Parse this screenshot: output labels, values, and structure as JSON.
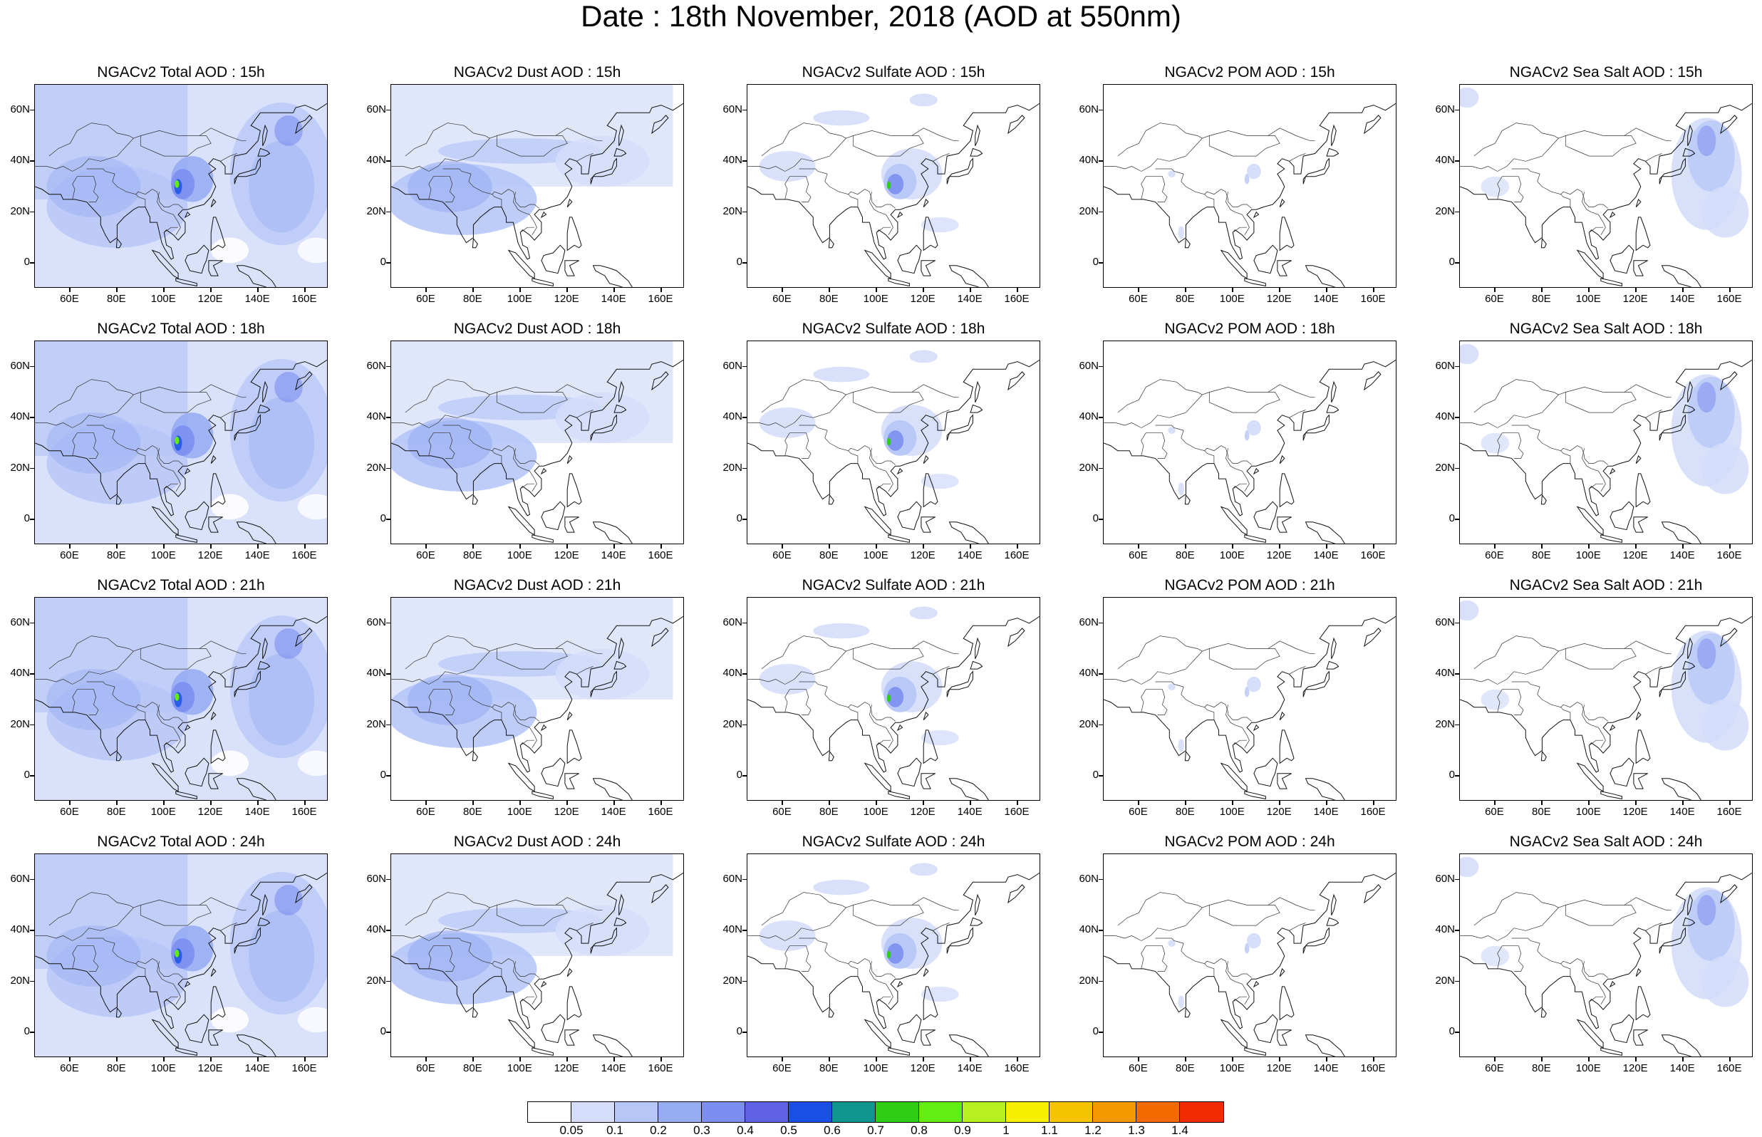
{
  "title": "Date : 18th November, 2018 (AOD at 550nm)",
  "lat_labels": [
    "60N",
    "40N",
    "20N",
    "0"
  ],
  "lon_labels": [
    "60E",
    "80E",
    "100E",
    "120E",
    "140E",
    "160E"
  ],
  "panels": [
    {
      "title": "NGACv2 Total AOD : 15h",
      "species": "total",
      "hour": "15h"
    },
    {
      "title": "NGACv2 Dust AOD : 15h",
      "species": "dust",
      "hour": "15h"
    },
    {
      "title": "NGACv2 Sulfate AOD : 15h",
      "species": "sulfate",
      "hour": "15h"
    },
    {
      "title": "NGACv2 POM AOD : 15h",
      "species": "pom",
      "hour": "15h"
    },
    {
      "title": "NGACv2 Sea Salt AOD : 15h",
      "species": "seasalt",
      "hour": "15h"
    },
    {
      "title": "NGACv2 Total AOD : 18h",
      "species": "total",
      "hour": "18h"
    },
    {
      "title": "NGACv2 Dust AOD : 18h",
      "species": "dust",
      "hour": "18h"
    },
    {
      "title": "NGACv2 Sulfate AOD : 18h",
      "species": "sulfate",
      "hour": "18h"
    },
    {
      "title": "NGACv2 POM AOD : 18h",
      "species": "pom",
      "hour": "18h"
    },
    {
      "title": "NGACv2 Sea Salt AOD : 18h",
      "species": "seasalt",
      "hour": "18h"
    },
    {
      "title": "NGACv2 Total AOD : 21h",
      "species": "total",
      "hour": "21h"
    },
    {
      "title": "NGACv2 Dust AOD : 21h",
      "species": "dust",
      "hour": "21h"
    },
    {
      "title": "NGACv2 Sulfate AOD : 21h",
      "species": "sulfate",
      "hour": "21h"
    },
    {
      "title": "NGACv2 POM AOD : 21h",
      "species": "pom",
      "hour": "21h"
    },
    {
      "title": "NGACv2 Sea Salt AOD : 21h",
      "species": "seasalt",
      "hour": "21h"
    },
    {
      "title": "NGACv2 Total AOD : 24h",
      "species": "total",
      "hour": "24h"
    },
    {
      "title": "NGACv2 Dust AOD : 24h",
      "species": "dust",
      "hour": "24h"
    },
    {
      "title": "NGACv2 Sulfate AOD : 24h",
      "species": "sulfate",
      "hour": "24h"
    },
    {
      "title": "NGACv2 POM AOD : 24h",
      "species": "pom",
      "hour": "24h"
    },
    {
      "title": "NGACv2 Sea Salt  AOD : 24h",
      "species": "seasalt",
      "hour": "24h"
    }
  ],
  "colorbar": {
    "labels": [
      "0.05",
      "0.1",
      "0.2",
      "0.3",
      "0.4",
      "0.5",
      "0.6",
      "0.7",
      "0.8",
      "0.9",
      "1",
      "1.1",
      "1.2",
      "1.3",
      "1.4"
    ],
    "colors": [
      "#ffffff",
      "#d4ddfa",
      "#b6c6f7",
      "#97adf3",
      "#7c8ff0",
      "#5f63e3",
      "#1850e6",
      "#10948e",
      "#2ecc14",
      "#62ee12",
      "#b6f020",
      "#f6f000",
      "#f7c200",
      "#f49a00",
      "#f26a00",
      "#f22c00"
    ]
  }
}
